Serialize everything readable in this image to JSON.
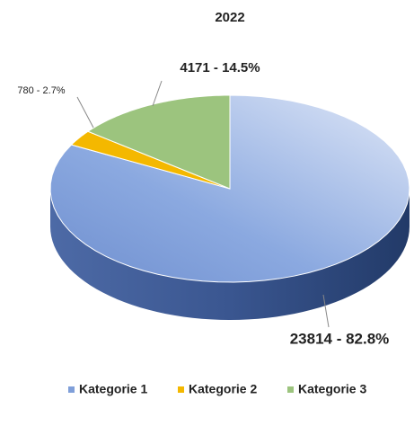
{
  "chart_data": {
    "type": "pie",
    "title": "2022",
    "categories": [
      "Kategorie 1",
      "Kategorie 2",
      "Kategorie 3"
    ],
    "values": [
      23814,
      780,
      4171
    ],
    "value_labels": [
      "23814 - 82.8%",
      "780 - 2.7%",
      "4171 - 14.5%"
    ],
    "colors": [
      "#7f9fd9",
      "#f4b800",
      "#9cc47e"
    ],
    "legend": "bottom"
  }
}
